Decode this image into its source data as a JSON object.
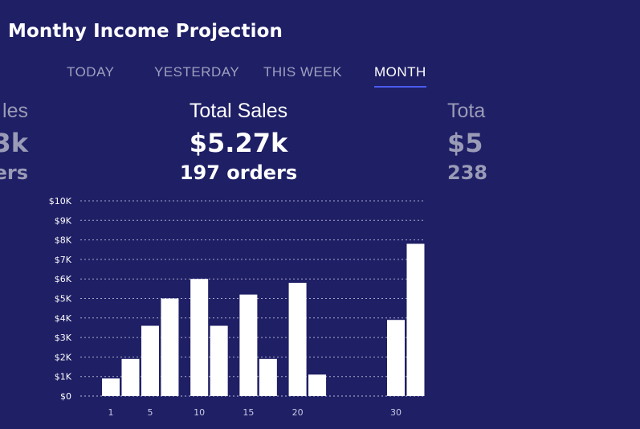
{
  "header": {
    "title": "Monthy Income Projection"
  },
  "tabs": [
    {
      "label": "TODAY",
      "active": false
    },
    {
      "label": "YESTERDAY",
      "active": false
    },
    {
      "label": "THIS WEEK",
      "active": false
    },
    {
      "label": "MONTH",
      "active": true
    }
  ],
  "cards": {
    "left": {
      "title": "les",
      "amount": "3k",
      "orders": "lers"
    },
    "center": {
      "title": "Total Sales",
      "amount": "$5.27k",
      "orders": "197 orders"
    },
    "right": {
      "title": "Tota",
      "amount": "$5",
      "orders": "238"
    }
  },
  "colors": {
    "background": "#1f1f66",
    "accent": "#4a5cf0",
    "bar": "#ffffff"
  },
  "chart_data": {
    "type": "bar",
    "x": [
      1,
      3,
      5,
      7,
      10,
      12,
      15,
      17,
      20,
      22,
      30,
      32
    ],
    "values": [
      900,
      1900,
      3600,
      5000,
      6000,
      3600,
      5200,
      1900,
      5800,
      1100,
      3900,
      7800
    ],
    "xticks": [
      "1",
      "5",
      "10",
      "15",
      "20",
      "30"
    ],
    "yticks": [
      "$0",
      "$1K",
      "$2K",
      "$3K",
      "$4K",
      "$5K",
      "$6K",
      "$7K",
      "$8K",
      "$9K",
      "$10K"
    ],
    "ylim": [
      0,
      10000
    ],
    "grid": true
  }
}
